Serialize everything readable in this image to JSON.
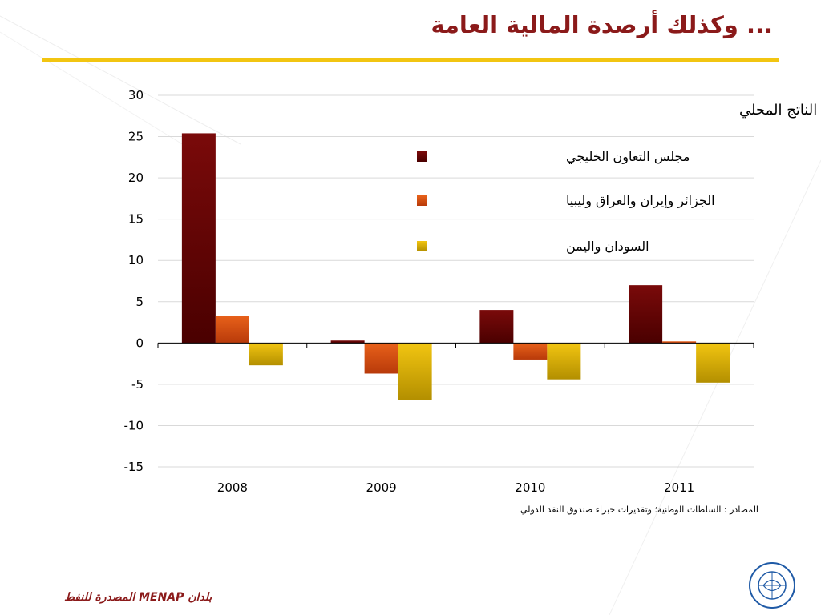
{
  "slide": {
    "title": "... وكذلك أرصدة المالية العامة",
    "source": "المصادر : السلطات الوطنية؛ وتقديرات خبراء صندوق النقد الدولي",
    "footer": "بلدان MENAP المصدرة للنفط"
  },
  "colors": {
    "title": "#8b1a1a",
    "rule": "#f2c511",
    "series": [
      "#7a0a0a",
      "#e8611a",
      "#f2c511"
    ],
    "series_dark": [
      "#4a0000",
      "#b83a0a",
      "#b38f00"
    ]
  },
  "logo": {
    "icon": "imf-seal-icon"
  },
  "chart_data": {
    "type": "bar",
    "title": "أرصدة المالية العامة، % من إجمالي الناتج المحلي",
    "xlabel": "",
    "ylabel": "",
    "categories": [
      "2008",
      "2009",
      "2010",
      "2011"
    ],
    "series": [
      {
        "name": "مجلس التعاون الخليجي",
        "values": [
          25.4,
          0.3,
          4.0,
          7.0
        ]
      },
      {
        "name": "الجزائر وإيران والعراق وليبيا",
        "values": [
          3.3,
          -3.7,
          -2.0,
          0.2
        ]
      },
      {
        "name": "السودان واليمن",
        "values": [
          -2.7,
          -6.9,
          -4.4,
          -4.8
        ]
      }
    ],
    "ylim": [
      -15,
      30
    ],
    "yticks": [
      30,
      25,
      20,
      15,
      10,
      5,
      0,
      -5,
      -10,
      -15
    ],
    "grid": true,
    "legend_position": "top-right"
  }
}
